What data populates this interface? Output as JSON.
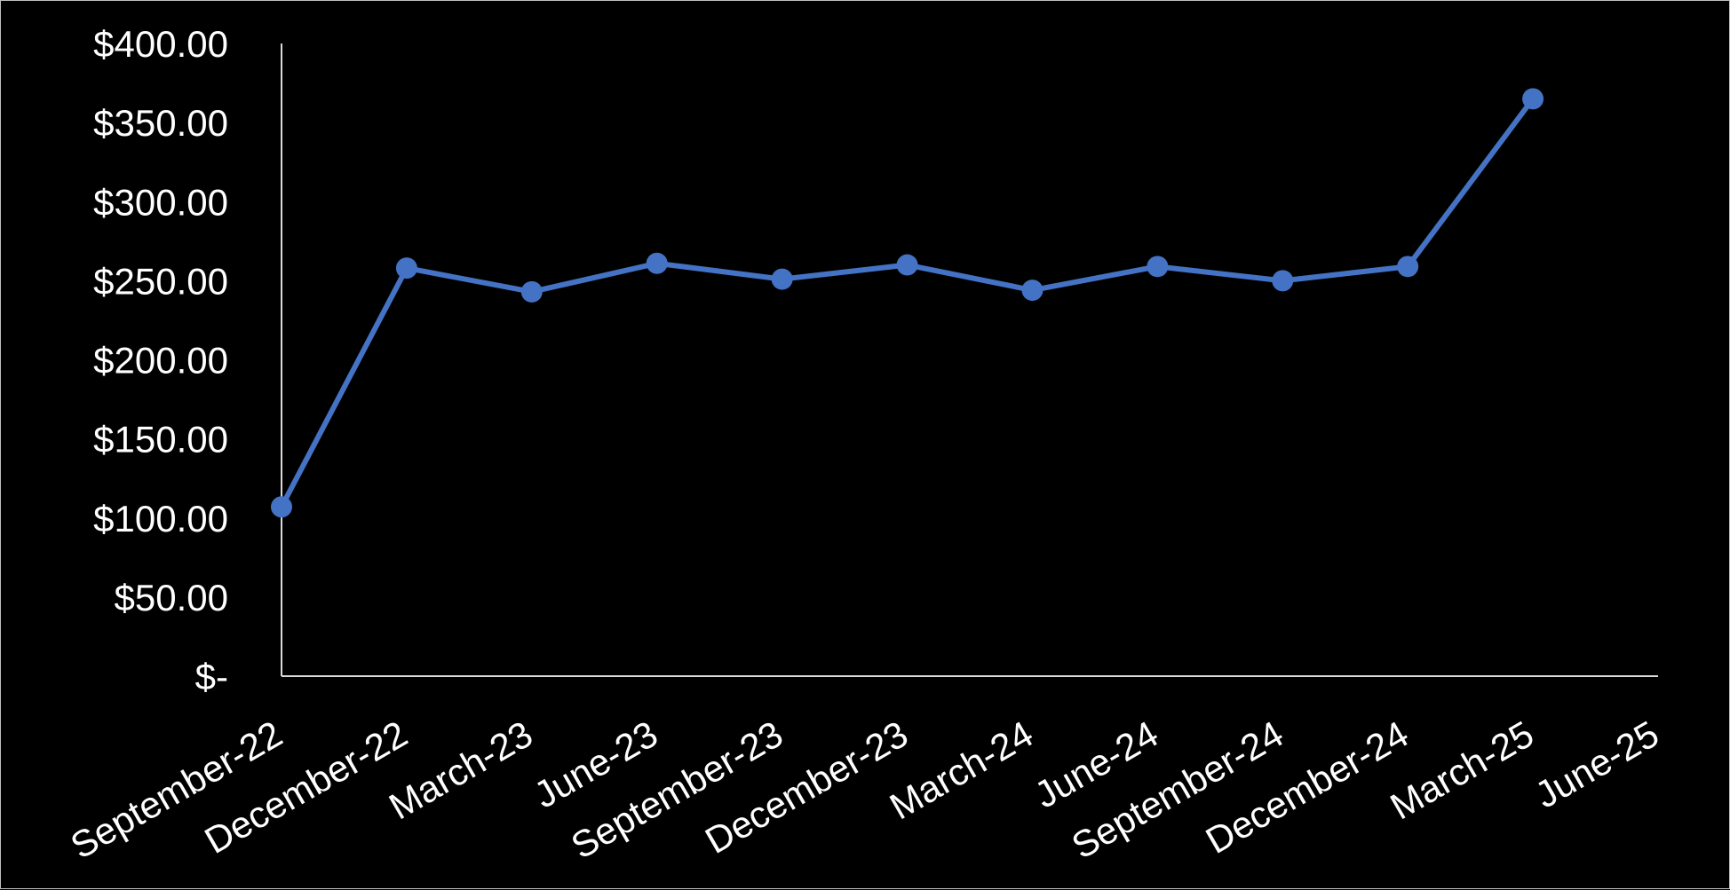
{
  "chart_data": {
    "type": "line",
    "title": "",
    "xlabel": "",
    "ylabel": "",
    "categories": [
      "September-22",
      "December-22",
      "March-23",
      "June-23",
      "September-23",
      "December-23",
      "March-24",
      "June-24",
      "September-24",
      "December-24",
      "March-25",
      "June-25"
    ],
    "y_tick_labels": [
      "$-",
      "$50.00",
      "$100.00",
      "$150.00",
      "$200.00",
      "$250.00",
      "$300.00",
      "$350.00",
      "$400.00"
    ],
    "ylim": [
      0,
      400
    ],
    "grid": false,
    "legend": "none",
    "series": [
      {
        "color": "#4472c4",
        "values": [
          107,
          258,
          243,
          261,
          251,
          260,
          244,
          259,
          250,
          259,
          365,
          null
        ]
      }
    ]
  }
}
